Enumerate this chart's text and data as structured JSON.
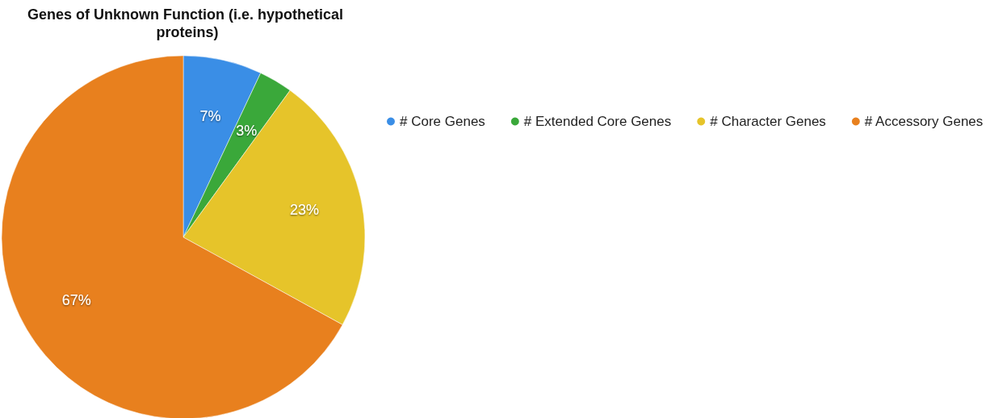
{
  "chart_data": {
    "type": "pie",
    "title": "Genes of Unknown Function (i.e. hypothetical proteins)",
    "categories": [
      "# Core Genes",
      "# Extended Core Genes",
      "# Character Genes",
      "# Accessory Genes"
    ],
    "values": [
      7,
      3,
      23,
      67
    ],
    "value_labels": [
      "7%",
      "3%",
      "23%",
      "67%"
    ],
    "colors": [
      "#3a8ee6",
      "#3aa83a",
      "#e6c42a",
      "#e8801e"
    ],
    "legend": "right"
  }
}
